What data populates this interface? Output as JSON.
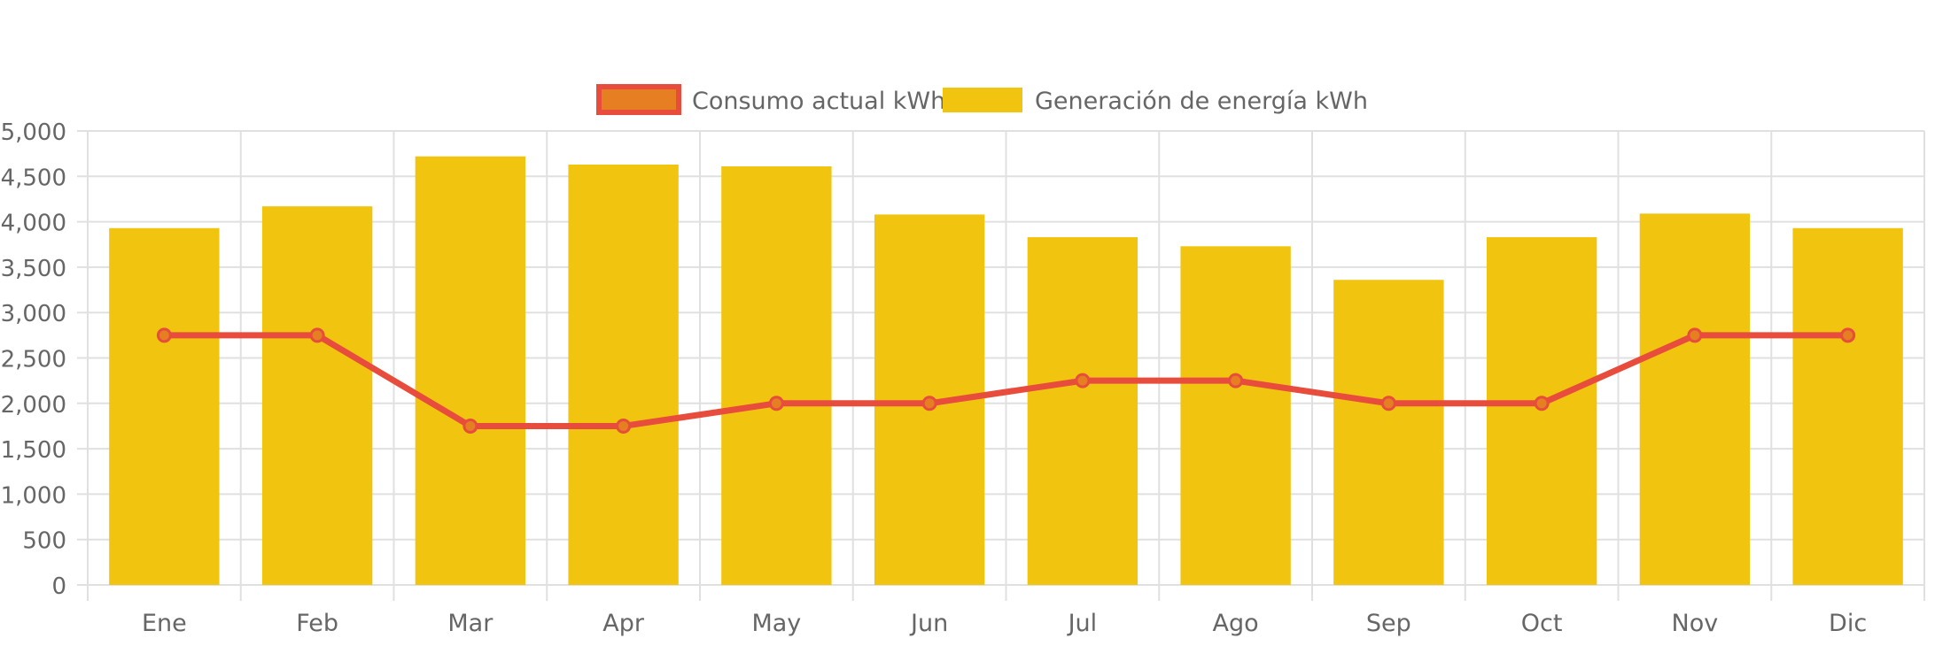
{
  "chart_data": {
    "type": "bar",
    "categories": [
      "Ene",
      "Feb",
      "Mar",
      "Apr",
      "May",
      "Jun",
      "Jul",
      "Ago",
      "Sep",
      "Oct",
      "Nov",
      "Dic"
    ],
    "series": [
      {
        "name": "Consumo actual kWh",
        "type": "line",
        "color": "#e74c3c",
        "fill": "#e67e22",
        "values": [
          2750,
          2750,
          1750,
          1750,
          2000,
          2000,
          2250,
          2250,
          2000,
          2000,
          2750,
          2750
        ]
      },
      {
        "name": "Generación de energía kWh",
        "type": "bar",
        "color": "#f1c40f",
        "values": [
          3930,
          4170,
          4720,
          4630,
          4610,
          4080,
          3830,
          3730,
          3360,
          3830,
          4090,
          3930
        ]
      }
    ],
    "y_ticks": [
      "0",
      "500",
      "1,000",
      "1,500",
      "2,000",
      "2,500",
      "3,000",
      "3,500",
      "4,000",
      "4,500",
      "5,000"
    ],
    "ylim": [
      0,
      5000
    ],
    "y_step": 500,
    "grid": true,
    "legend_position": "top",
    "title": "",
    "xlabel": "",
    "ylabel": ""
  },
  "colors": {
    "grid": "#e0e0e0",
    "axis_text": "#666666",
    "background": "#ffffff"
  }
}
